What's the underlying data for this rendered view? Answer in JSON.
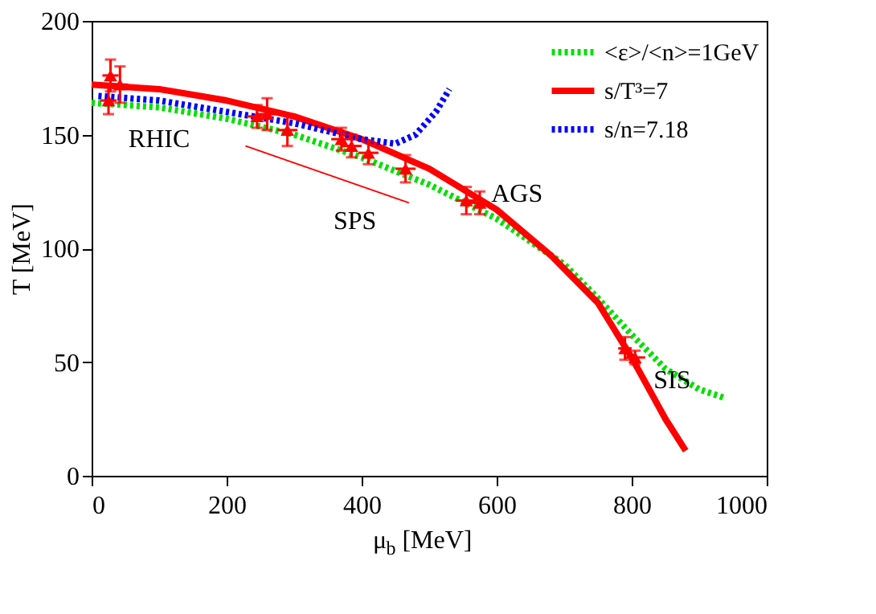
{
  "chart_data": {
    "type": "line",
    "xlabel": "μ$_{b}$ [MeV]",
    "ylabel": "T [MeV]",
    "xlim": [
      0,
      1000
    ],
    "ylim": [
      0,
      200
    ],
    "xticks": [
      0,
      200,
      400,
      600,
      800,
      1000
    ],
    "yticks": [
      0,
      50,
      100,
      150,
      200
    ],
    "grid": false,
    "legend": "top right",
    "series": [
      {
        "name": "<ε>/<n>=1GeV",
        "color": "#00e000",
        "line_style": "dotted",
        "x": [
          0,
          100,
          200,
          300,
          400,
          500,
          600,
          700,
          750,
          800,
          850,
          900,
          940
        ],
        "values": [
          164,
          162,
          157,
          150,
          140,
          128,
          113,
          93,
          78,
          62,
          47,
          38,
          34
        ]
      },
      {
        "name": "s/T³=7",
        "color": "#ff0000",
        "line_style": "solid",
        "x": [
          0,
          100,
          200,
          300,
          400,
          500,
          600,
          680,
          750,
          800,
          850,
          880
        ],
        "values": [
          172,
          170,
          165,
          158,
          148,
          135,
          117,
          97,
          76,
          52,
          25,
          11
        ]
      },
      {
        "name": "s/n=7.18",
        "color": "#0000ff",
        "line_style": "dotted",
        "x": [
          10,
          100,
          200,
          300,
          400,
          450,
          480,
          510,
          530
        ],
        "values": [
          167,
          165,
          160,
          155,
          148,
          146,
          150,
          160,
          170
        ]
      },
      {
        "type": "line",
        "color": "#ff0000",
        "line_style": "solid",
        "x": [
          228,
          470
        ],
        "values": [
          145,
          120
        ]
      },
      {
        "type": "scatter",
        "color": "#ff0000",
        "marker": "triangle",
        "x": [
          25,
          28,
          42,
          245,
          260,
          290,
          370,
          385,
          410,
          465,
          555,
          575,
          790,
          805
        ],
        "values": [
          165,
          176,
          172,
          158,
          159,
          152,
          148,
          145,
          142,
          135,
          121,
          120,
          56,
          52
        ],
        "errors": [
          6,
          7,
          8,
          5,
          7,
          7,
          5,
          5,
          5,
          6,
          6,
          5,
          5,
          3
        ],
        "xerrors": [
          12,
          12,
          12,
          15,
          15,
          15,
          15,
          15,
          15,
          15,
          15,
          15,
          10,
          15
        ]
      }
    ],
    "annotations": [
      "RHIC",
      "SPS",
      "AGS",
      "SIS"
    ]
  }
}
